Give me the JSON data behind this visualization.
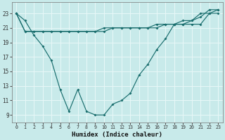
{
  "xlabel": "Humidex (Indice chaleur)",
  "xlim": [
    -0.5,
    23.5
  ],
  "ylim": [
    8,
    24.5
  ],
  "yticks": [
    9,
    11,
    13,
    15,
    17,
    19,
    21,
    23
  ],
  "xticks": [
    0,
    1,
    2,
    3,
    4,
    5,
    6,
    7,
    8,
    9,
    10,
    11,
    12,
    13,
    14,
    15,
    16,
    17,
    18,
    19,
    20,
    21,
    22,
    23
  ],
  "bg_color": "#c8eaea",
  "line_color": "#1a6e6e",
  "grid_color": "#e8f8f8",
  "series_jagged": [
    23,
    22,
    20,
    18.5,
    16.5,
    12.5,
    9.5,
    12.5,
    9.5,
    9,
    9,
    10.5,
    11,
    12,
    14.5,
    16,
    18,
    19.5,
    21.5,
    21.5,
    22,
    23,
    23,
    23.5
  ],
  "series_upper1": [
    23,
    20.5,
    20.5,
    20.5,
    20.5,
    20.5,
    20.5,
    20.5,
    20.5,
    20.5,
    20.5,
    21,
    21,
    21,
    21,
    21,
    21.5,
    21.5,
    21.5,
    21.5,
    21.5,
    21.5,
    23,
    23
  ],
  "series_upper2": [
    23,
    20.5,
    20.5,
    20.5,
    20.5,
    20.5,
    20.5,
    20.5,
    20.5,
    20.5,
    21,
    21,
    21,
    21,
    21,
    21,
    21,
    21.5,
    21.5,
    22,
    22,
    22.5,
    23.5,
    23.5
  ]
}
